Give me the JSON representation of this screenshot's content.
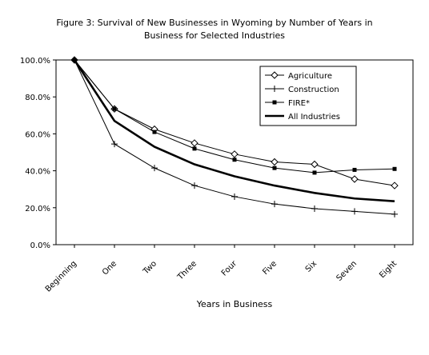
{
  "chart_data": {
    "type": "line",
    "title": "Figure 3: Survival of New Businesses in Wyoming by Number of Years in Business for Selected Industries",
    "title_lines": [
      "Figure 3: Survival of New Businesses in Wyoming by Number of Years in",
      "Business for Selected Industries"
    ],
    "xlabel": "Years in Business",
    "ylabel": "",
    "categories": [
      "Beginning",
      "One",
      "Two",
      "Three",
      "Four",
      "Five",
      "Six",
      "Seven",
      "Eight"
    ],
    "yticks": [
      "0.0%",
      "20.0%",
      "40.0%",
      "60.0%",
      "80.0%",
      "100.0%"
    ],
    "ylim": [
      0,
      100
    ],
    "grid": false,
    "legend_position": "top-right",
    "series": [
      {
        "name": "Agriculture",
        "marker": "diamond",
        "color": "#000000",
        "values": [
          100,
          73.5,
          62.5,
          55,
          49,
          44.8,
          43.5,
          35.5,
          32
        ]
      },
      {
        "name": "Construction",
        "marker": "plus",
        "color": "#000000",
        "values": [
          100,
          54.5,
          41.5,
          32,
          26,
          22,
          19.5,
          18,
          16.5
        ]
      },
      {
        "name": "FIRE*",
        "marker": "square",
        "color": "#000000",
        "values": [
          100,
          73.5,
          61,
          52,
          46,
          41.5,
          39,
          40.5,
          41
        ]
      },
      {
        "name": "All Industries",
        "marker": "none",
        "color": "#000000",
        "thick": true,
        "values": [
          100,
          67,
          53,
          43.5,
          37,
          32,
          28,
          25,
          23.5
        ]
      }
    ]
  }
}
